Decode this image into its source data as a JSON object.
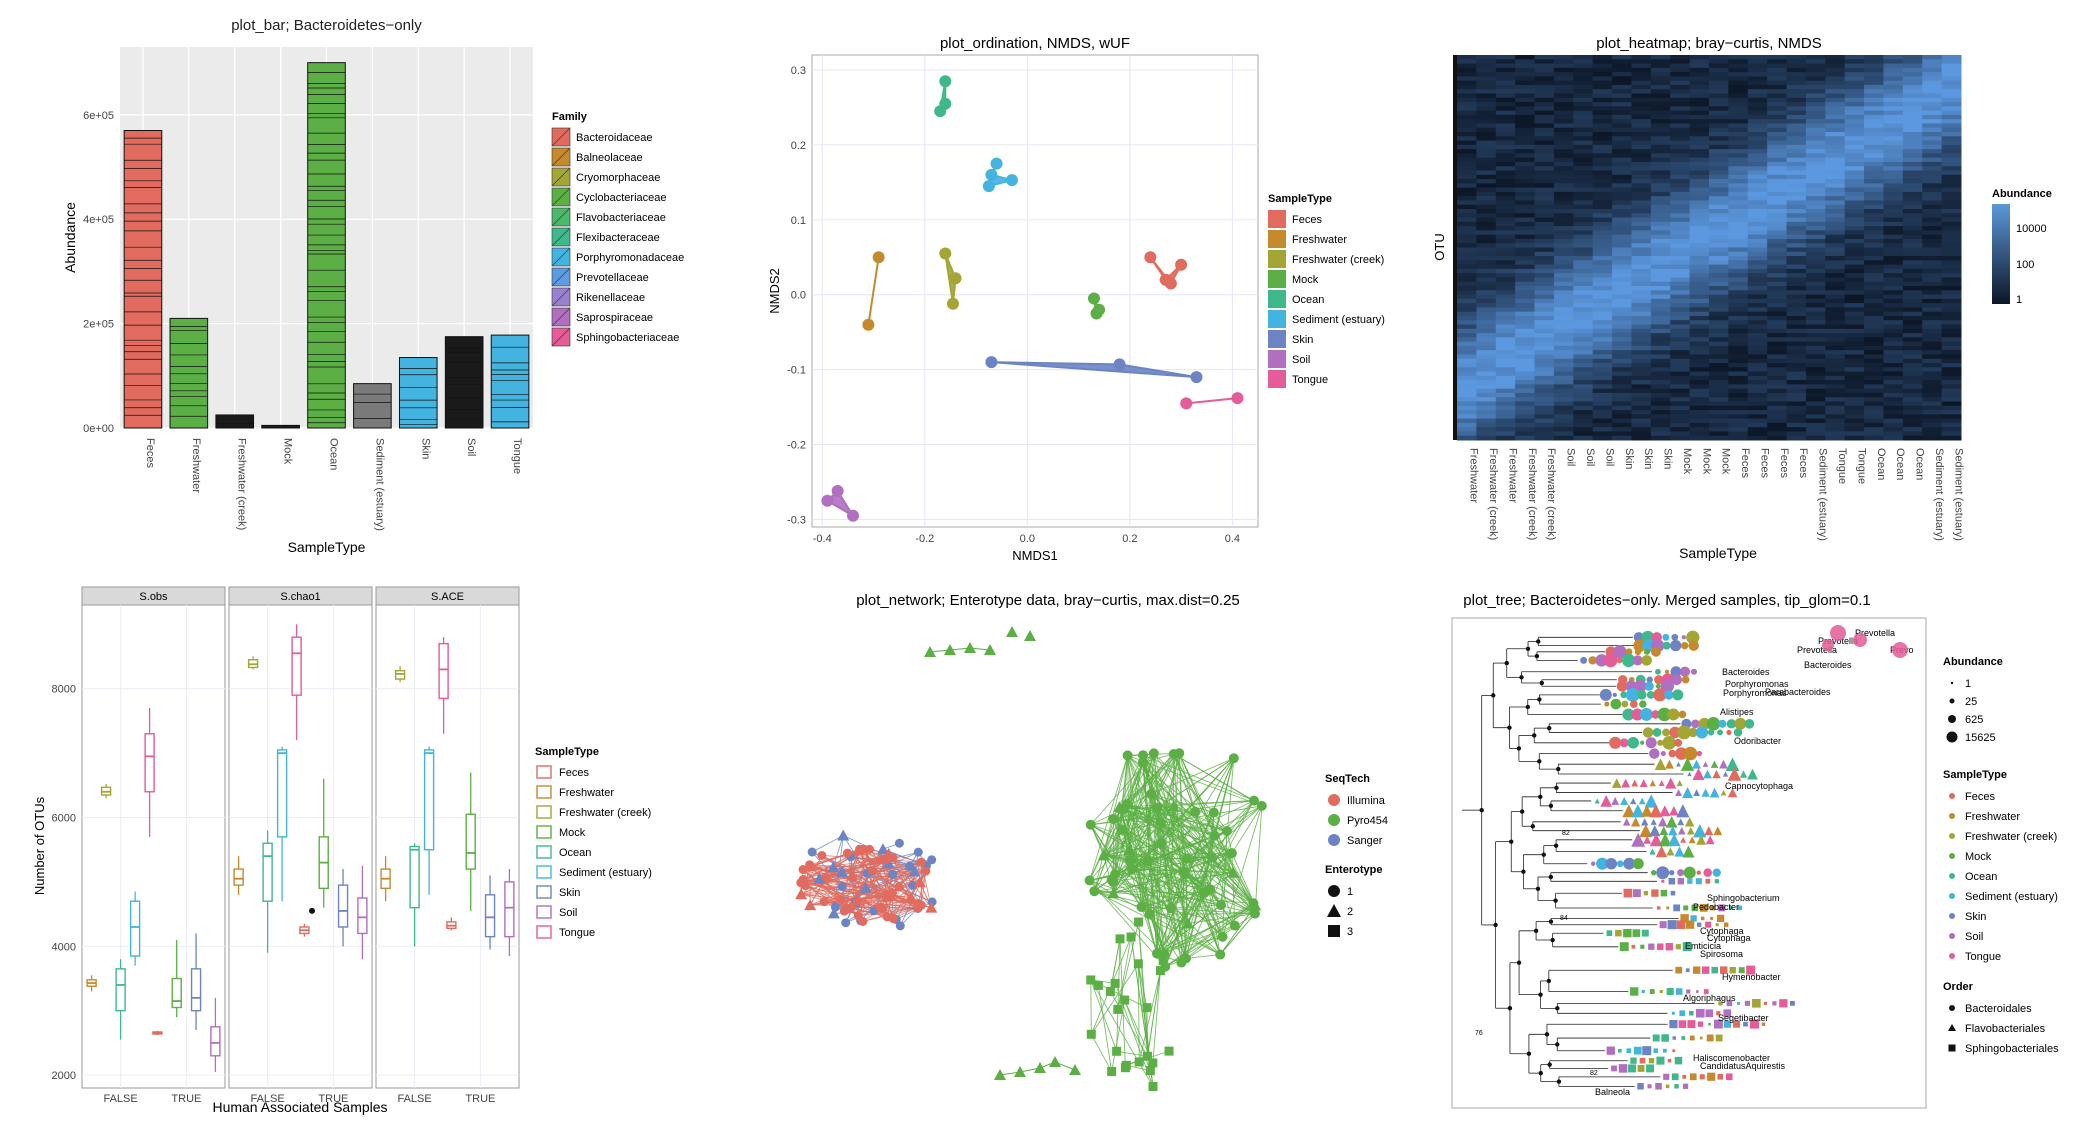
{
  "colors": {
    "Feces": "#E06B5E",
    "Freshwater": "#C58A2E",
    "Freshwater (creek)": "#A3A535",
    "Mock": "#5BAF44",
    "Ocean": "#3FB98C",
    "Sediment (estuary)": "#43B3E0",
    "Skin": "#6C84C4",
    "Soil": "#B06FBF",
    "Tongue": "#E45C98",
    "Illumina": "#E06B5E",
    "Pyro454": "#5BAF44",
    "Sanger": "#6C84C4",
    "panel_bg": "#EBEBEB",
    "strip_bg": "#D9D9D9"
  },
  "chart_data": [
    {
      "type": "bar",
      "title": "plot_bar; Bacteroidetes−only",
      "xlabel": "SampleType",
      "ylabel": "Abundance",
      "categories": [
        "Feces",
        "Freshwater",
        "Freshwater (creek)",
        "Mock",
        "Ocean",
        "Sediment (estuary)",
        "Skin",
        "Soil",
        "Tongue"
      ],
      "values": [
        570000,
        210000,
        25000,
        5000,
        700000,
        85000,
        135000,
        175000,
        178000
      ],
      "fill_colors": [
        "#E06B5E",
        "#5BAF44",
        "#1a1a1a",
        "#1a1a1a",
        "#5BAF44",
        "#7a7a7a",
        "#43B3E0",
        "#1a1a1a",
        "#43B3E0"
      ],
      "yticks": [
        "0e+00",
        "2e+05",
        "4e+05",
        "6e+05"
      ],
      "ytick_values": [
        0,
        200000,
        400000,
        600000
      ],
      "ylim": [
        0,
        730000
      ],
      "legend_title": "Family",
      "legend": [
        "Bacteroidaceae",
        "Balneolaceae",
        "Cryomorphaceae",
        "Cyclobacteriaceae",
        "Flavobacteriaceae",
        "Flexibacteraceae",
        "Porphyromonadaceae",
        "Prevotellaceae",
        "Rikenellaceae",
        "Saprospiraceae",
        "Sphingobacteriaceae"
      ],
      "legend_colors": [
        "#E06B5E",
        "#C58A2E",
        "#A3A535",
        "#5BAF44",
        "#4CB86A",
        "#3FB98C",
        "#43B3E0",
        "#5E9BE0",
        "#9A80CF",
        "#B06FBF",
        "#E45C98"
      ]
    },
    {
      "type": "scatter",
      "title": "plot_ordination, NMDS, wUF",
      "xlabel": "NMDS1",
      "ylabel": "NMDS2",
      "xlim": [
        -0.42,
        0.45
      ],
      "ylim": [
        -0.31,
        0.32
      ],
      "xticks": [
        "-0.4",
        "-0.2",
        "0.0",
        "0.2",
        "0.4"
      ],
      "xtick_values": [
        -0.4,
        -0.2,
        0.0,
        0.2,
        0.4
      ],
      "yticks": [
        "-0.3",
        "-0.2",
        "-0.1",
        "0.0",
        "0.1",
        "0.2",
        "0.3"
      ],
      "ytick_values": [
        -0.3,
        -0.2,
        -0.1,
        0.0,
        0.1,
        0.2,
        0.3
      ],
      "legend_title": "SampleType",
      "series": [
        {
          "name": "Feces",
          "points": [
            [
              0.24,
              0.05
            ],
            [
              0.27,
              0.02
            ],
            [
              0.3,
              0.04
            ],
            [
              0.28,
              0.015
            ]
          ]
        },
        {
          "name": "Freshwater",
          "points": [
            [
              -0.29,
              0.05
            ],
            [
              -0.31,
              -0.04
            ]
          ]
        },
        {
          "name": "Freshwater (creek)",
          "points": [
            [
              -0.16,
              0.055
            ],
            [
              -0.14,
              0.022
            ],
            [
              -0.145,
              -0.012
            ]
          ]
        },
        {
          "name": "Mock",
          "points": [
            [
              0.13,
              -0.005
            ],
            [
              0.14,
              -0.02
            ],
            [
              0.135,
              -0.025
            ]
          ]
        },
        {
          "name": "Ocean",
          "points": [
            [
              -0.16,
              0.285
            ],
            [
              -0.16,
              0.255
            ],
            [
              -0.17,
              0.245
            ]
          ]
        },
        {
          "name": "Sediment (estuary)",
          "points": [
            [
              -0.06,
              0.175
            ],
            [
              -0.07,
              0.16
            ],
            [
              -0.03,
              0.153
            ],
            [
              -0.075,
              0.145
            ]
          ]
        },
        {
          "name": "Skin",
          "points": [
            [
              -0.07,
              -0.09
            ],
            [
              0.18,
              -0.093
            ],
            [
              0.33,
              -0.11
            ]
          ]
        },
        {
          "name": "Soil",
          "points": [
            [
              -0.39,
              -0.275
            ],
            [
              -0.37,
              -0.262
            ],
            [
              -0.34,
              -0.295
            ]
          ]
        },
        {
          "name": "Tongue",
          "points": [
            [
              0.31,
              -0.145
            ],
            [
              0.41,
              -0.138
            ]
          ]
        }
      ]
    },
    {
      "type": "heatmap",
      "title": "plot_heatmap; bray−curtis, NMDS",
      "xlabel": "SampleType",
      "ylabel": "OTU",
      "columns": [
        "Freshwater",
        "Freshwater (creek)",
        "Freshwater",
        "Freshwater (creek)",
        "Freshwater (creek)",
        "Soil",
        "Soil",
        "Soil",
        "Skin",
        "Skin",
        "Skin",
        "Mock",
        "Mock",
        "Mock",
        "Feces",
        "Feces",
        "Feces",
        "Feces",
        "Sediment (estuary)",
        "Tongue",
        "Tongue",
        "Ocean",
        "Ocean",
        "Ocean",
        "Sediment (estuary)",
        "Sediment (estuary)"
      ],
      "legend_title": "Abundance",
      "legend_ticks": [
        "10000",
        "100",
        "1"
      ]
    },
    {
      "type": "box",
      "xlabel": "Human Associated Samples",
      "ylabel": "Number of OTUs",
      "facets": [
        "S.obs",
        "S.chao1",
        "S.ACE"
      ],
      "categories": [
        "FALSE",
        "TRUE"
      ],
      "yticks": [
        "2000",
        "4000",
        "6000",
        "8000"
      ],
      "ytick_values": [
        2000,
        4000,
        6000,
        8000
      ],
      "ylim": [
        1800,
        9300
      ],
      "legend_title": "SampleType",
      "legend": [
        "Feces",
        "Freshwater",
        "Freshwater (creek)",
        "Mock",
        "Ocean",
        "Sediment (estuary)",
        "Skin",
        "Soil",
        "Tongue"
      ],
      "boxes": [
        [
          {
            "type": "Freshwater",
            "group": "FALSE",
            "q": [
              3300,
              3380,
              3430,
              3480,
              3550
            ]
          },
          {
            "type": "Freshwater (creek)",
            "group": "FALSE",
            "q": [
              6300,
              6350,
              6400,
              6470,
              6520
            ]
          },
          {
            "type": "Ocean",
            "group": "FALSE",
            "q": [
              2550,
              3000,
              3400,
              3650,
              3800
            ]
          },
          {
            "type": "Sediment (estuary)",
            "group": "FALSE",
            "q": [
              3700,
              3850,
              4300,
              4700,
              4850
            ]
          },
          {
            "type": "Tongue",
            "group": "FALSE",
            "q": [
              5700,
              6400,
              6950,
              7300,
              7700
            ]
          },
          {
            "type": "Feces",
            "group": "TRUE",
            "q": [
              2620,
              2640,
              2650,
              2670,
              2690
            ]
          },
          {
            "type": "Mock",
            "group": "TRUE",
            "q": [
              2900,
              3050,
              3150,
              3500,
              4100
            ]
          },
          {
            "type": "Skin",
            "group": "TRUE",
            "q": [
              2700,
              3000,
              3200,
              3650,
              4200
            ]
          },
          {
            "type": "Soil",
            "group": "TRUE",
            "q": [
              2050,
              2300,
              2500,
              2750,
              3200
            ]
          }
        ],
        [
          {
            "type": "Freshwater",
            "group": "FALSE",
            "q": [
              4800,
              4950,
              5050,
              5200,
              5400
            ]
          },
          {
            "type": "Freshwater (creek)",
            "group": "FALSE",
            "q": [
              8300,
              8330,
              8380,
              8450,
              8500
            ]
          },
          {
            "type": "Ocean",
            "group": "FALSE",
            "q": [
              3900,
              4700,
              5400,
              5600,
              5800
            ]
          },
          {
            "type": "Sediment (estuary)",
            "group": "FALSE",
            "q": [
              4700,
              5700,
              7000,
              7050,
              7100
            ]
          },
          {
            "type": "Tongue",
            "group": "FALSE",
            "q": [
              7200,
              7900,
              8550,
              8800,
              9000
            ]
          },
          {
            "type": "Feces",
            "group": "TRUE",
            "q": [
              4150,
              4200,
              4250,
              4300,
              4350
            ]
          },
          {
            "type": "Mock",
            "group": "TRUE",
            "q": [
              4600,
              4900,
              5300,
              5700,
              6600
            ]
          },
          {
            "type": "Skin",
            "group": "TRUE",
            "q": [
              4000,
              4300,
              4550,
              4950,
              5200
            ]
          },
          {
            "type": "Soil",
            "group": "TRUE",
            "q": [
              3800,
              4200,
              4450,
              4750,
              5250
            ]
          }
        ],
        [
          {
            "type": "Freshwater",
            "group": "FALSE",
            "q": [
              4700,
              4900,
              5050,
              5200,
              5400
            ]
          },
          {
            "type": "Freshwater (creek)",
            "group": "FALSE",
            "q": [
              8100,
              8150,
              8230,
              8280,
              8350
            ]
          },
          {
            "type": "Ocean",
            "group": "FALSE",
            "q": [
              4000,
              4600,
              5500,
              5550,
              5600
            ]
          },
          {
            "type": "Sediment (estuary)",
            "group": "FALSE",
            "q": [
              4800,
              5500,
              7000,
              7050,
              7100
            ]
          },
          {
            "type": "Tongue",
            "group": "FALSE",
            "q": [
              7300,
              7850,
              8300,
              8700,
              8800
            ]
          },
          {
            "type": "Feces",
            "group": "TRUE",
            "q": [
              4250,
              4280,
              4320,
              4380,
              4450
            ]
          },
          {
            "type": "Mock",
            "group": "TRUE",
            "q": [
              4550,
              5200,
              5450,
              6050,
              6700
            ]
          },
          {
            "type": "Skin",
            "group": "TRUE",
            "q": [
              3950,
              4150,
              4450,
              4800,
              5100
            ]
          },
          {
            "type": "Soil",
            "group": "TRUE",
            "q": [
              3850,
              4150,
              4600,
              5000,
              5200
            ]
          }
        ]
      ]
    },
    {
      "type": "network",
      "title": "plot_network; Enterotype data, bray−curtis, max.dist=0.25",
      "legend_seqtech_title": "SeqTech",
      "legend_seqtech": [
        "Illumina",
        "Pyro454",
        "Sanger"
      ],
      "legend_enterotype_title": "Enterotype",
      "legend_enterotype": [
        "1",
        "2",
        "3"
      ]
    },
    {
      "type": "tree",
      "title": "plot_tree; Bacteroidetes−only. Merged samples, tip_glom=0.1",
      "legend_abundance_title": "Abundance",
      "legend_abundance": [
        "1",
        "25",
        "625",
        "15625"
      ],
      "legend_sampletype_title": "SampleType",
      "legend_sampletype": [
        "Feces",
        "Freshwater",
        "Freshwater (creek)",
        "Mock",
        "Ocean",
        "Sediment (estuary)",
        "Skin",
        "Soil",
        "Tongue"
      ],
      "legend_order_title": "Order",
      "legend_order": [
        "Bacteroidales",
        "Flavobacteriales",
        "Sphingobacteriales"
      ],
      "tip_labels": [
        "Prevotella",
        "Prevotella",
        "Prevotella",
        "Prevo",
        "Bacteroides",
        "Bacteroides",
        "Porphyromonas",
        "Porphyromonas",
        "Parabacteroides",
        "Alistipes",
        "Odoribacter",
        "Capnocytophaga",
        "Sphingobacterium",
        "Pedobacter",
        "Cytophaga",
        "Cytophaga",
        "Emticicia",
        "Spirosoma",
        "Hymenobacter",
        "Algoriphagus",
        "Segetibacter",
        "Haliscomenobacter",
        "CandidatusAquirestis",
        "Balneola"
      ],
      "node_labels": [
        "82",
        "76",
        "84",
        "82"
      ]
    }
  ]
}
